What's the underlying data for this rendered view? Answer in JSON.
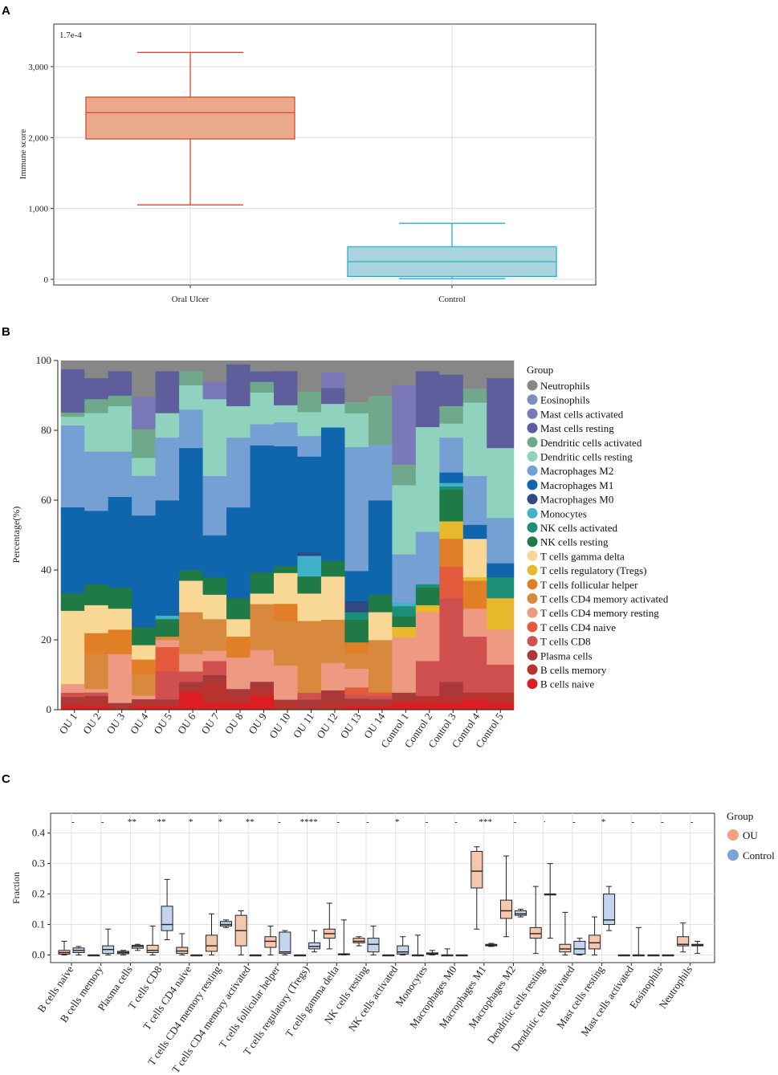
{
  "panels": {
    "a": "A",
    "b": "B",
    "c": "C"
  },
  "chart_data": [
    {
      "type": "box",
      "panel": "A",
      "annotation": "1.7e-4",
      "ylabel": "Immune score",
      "yticks": [
        0,
        1000,
        2000,
        3000
      ],
      "ytick_labels": [
        "0",
        "1,000",
        "2,000",
        "3,000"
      ],
      "ylim": [
        -80,
        3600
      ],
      "categories": [
        "Oral Ulcer",
        "Control"
      ],
      "colors": {
        "fill": [
          "#eba98c",
          "#a9d4de"
        ],
        "stroke": [
          "#d94a2f",
          "#2ab0cc"
        ]
      },
      "boxes": [
        {
          "min": 1050,
          "q1": 1980,
          "median": 2350,
          "q3": 2570,
          "max": 3200
        },
        {
          "min": 10,
          "q1": 40,
          "median": 250,
          "q3": 460,
          "max": 790
        }
      ]
    },
    {
      "type": "stacked-bar",
      "panel": "B",
      "ylabel": "Percentage(%)",
      "ylim": [
        0,
        100
      ],
      "yticks": [
        "0",
        "20",
        "40",
        "60",
        "80",
        "100"
      ],
      "legend_title": "Group",
      "samples": [
        "OU 1",
        "OU 2",
        "OU 3",
        "OU 4",
        "OU 5",
        "OU 6",
        "OU 7",
        "OU 8",
        "OU 9",
        "OU 10",
        "OU 11",
        "OU 12",
        "OU 13",
        "OU 14",
        "Control 1",
        "Control 2",
        "Control 3",
        "Control 4",
        "Control 5"
      ],
      "cell_types": [
        "B cells naive",
        "B cells memory",
        "Plasma cells",
        "T cells CD8",
        "T cells CD4 naive",
        "T cells CD4 memory resting",
        "T cells CD4 memory activated",
        "T cells follicular helper",
        "T cells regulatory (Tregs)",
        "T cells gamma delta",
        "NK cells resting",
        "NK cells activated",
        "Monocytes",
        "Macrophages M0",
        "Macrophages M1",
        "Macrophages M2",
        "Dendritic cells resting",
        "Dendritic cells activated",
        "Mast cells resting",
        "Mast cells activated",
        "Eosinophils",
        "Neutrophils"
      ],
      "colors": [
        "#dd1c24",
        "#b8332d",
        "#a9393b",
        "#d05050",
        "#e45a3f",
        "#ee9a82",
        "#d9893e",
        "#e07f25",
        "#e8b92c",
        "#f9d794",
        "#1f7a45",
        "#1c8f76",
        "#3fb1c8",
        "#2e4a86",
        "#1066ad",
        "#74a0d3",
        "#8fd3bf",
        "#6fa88a",
        "#5e5e9c",
        "#7a78b8",
        "#7c8fbd",
        "#878787"
      ],
      "legend_order": [
        "Neutrophils",
        "Eosinophils",
        "Mast cells activated",
        "Mast cells resting",
        "Dendritic cells activated",
        "Dendritic cells resting",
        "Macrophages M2",
        "Macrophages M1",
        "Macrophages M0",
        "Monocytes",
        "NK cells activated",
        "NK cells resting",
        "T cells gamma delta",
        "T cells regulatory (Tregs)",
        "T cells follicular helper",
        "T cells CD4 memory activated",
        "T cells CD4 memory resting",
        "T cells CD4 naive",
        "T cells CD8",
        "Plasma cells",
        "B cells memory",
        "B cells naive"
      ],
      "values": [
        [
          1,
          1,
          1,
          1,
          0,
          2,
          0,
          0,
          0,
          17,
          4,
          0,
          0,
          0,
          20,
          19,
          2,
          1,
          10,
          0,
          0,
          2
        ],
        [
          1,
          2,
          1,
          1,
          0,
          1,
          10,
          6,
          0,
          8,
          6,
          0,
          0,
          0,
          21,
          17,
          11,
          4,
          6,
          0,
          0,
          5
        ],
        [
          0,
          1,
          1,
          0,
          0,
          14,
          0,
          7,
          0,
          6,
          6,
          0,
          0,
          0,
          26,
          13,
          13,
          3,
          7,
          0,
          0,
          3
        ],
        [
          1,
          1,
          1,
          0,
          0,
          1,
          6,
          4,
          0,
          4,
          5,
          0,
          0,
          0,
          31,
          11,
          5,
          8,
          0,
          9,
          0,
          10
        ],
        [
          1,
          1,
          1,
          8,
          7,
          2,
          1,
          0,
          0,
          0,
          5,
          0,
          1,
          0,
          33,
          18,
          7,
          0,
          12,
          0,
          0,
          3
        ],
        [
          5,
          1,
          2,
          3,
          0,
          5,
          12,
          0,
          0,
          9,
          3,
          0,
          0,
          0,
          35,
          11,
          7,
          4,
          0,
          0,
          0,
          3
        ],
        [
          2,
          6,
          2,
          4,
          0,
          3,
          9,
          0,
          0,
          7,
          5,
          0,
          0,
          0,
          12,
          17,
          22,
          0,
          0,
          5,
          0,
          6
        ],
        [
          2,
          2,
          2,
          0,
          0,
          9,
          0,
          6,
          0,
          5,
          6,
          0,
          0,
          0,
          26,
          20,
          9,
          0,
          12,
          0,
          0,
          1
        ],
        [
          4,
          2,
          2,
          0,
          0,
          9,
          13,
          0,
          0,
          3,
          6,
          0,
          0,
          0,
          36,
          6,
          9,
          3,
          3,
          0,
          0,
          3
        ],
        [
          0,
          2,
          1,
          0,
          0,
          10,
          13,
          5,
          0,
          9,
          2,
          0,
          0,
          0,
          35,
          7,
          5,
          0,
          10,
          0,
          0,
          3
        ],
        [
          0,
          1,
          2,
          2,
          0,
          0,
          21,
          0,
          0,
          8,
          5,
          0,
          6,
          1,
          28,
          6,
          7,
          6,
          0,
          0,
          0,
          9
        ],
        [
          0,
          2,
          3,
          0,
          0,
          7,
          11,
          0,
          0,
          11,
          4,
          0,
          0,
          0,
          34,
          0,
          6,
          0,
          4,
          4,
          0,
          3
        ],
        [
          1,
          1,
          1,
          1,
          2,
          5,
          4,
          3,
          0,
          0,
          6,
          2,
          0,
          3,
          8,
          33,
          9,
          3,
          0,
          0,
          0,
          11
        ],
        [
          1,
          1,
          1,
          1,
          1,
          0,
          15,
          0,
          0,
          8,
          5,
          0,
          0,
          0,
          27,
          16,
          0,
          14,
          0,
          0,
          0,
          10
        ],
        [
          2,
          1,
          2,
          0,
          0,
          16,
          0,
          0,
          3,
          0,
          3,
          3,
          1,
          0,
          0,
          14,
          20,
          6,
          0,
          23,
          0,
          7
        ],
        [
          2,
          2,
          0,
          10,
          0,
          14,
          0,
          0,
          2,
          0,
          5,
          1,
          0,
          0,
          0,
          15,
          30,
          0,
          16,
          0,
          0,
          3
        ],
        [
          2,
          2,
          4,
          24,
          9,
          0,
          0,
          8,
          5,
          0,
          9,
          1,
          1,
          0,
          3,
          10,
          4,
          5,
          9,
          0,
          0,
          4
        ],
        [
          3,
          2,
          0,
          16,
          0,
          8,
          0,
          8,
          1,
          11,
          0,
          0,
          0,
          0,
          4,
          14,
          21,
          4,
          0,
          0,
          0,
          8
        ],
        [
          2,
          3,
          0,
          8,
          0,
          10,
          0,
          0,
          9,
          0,
          0,
          6,
          0,
          0,
          4,
          13,
          20,
          0,
          20,
          0,
          0,
          5
        ]
      ]
    },
    {
      "type": "grouped-box",
      "panel": "C",
      "ylabel": "Fraction",
      "ylim": [
        -0.025,
        0.465
      ],
      "yticks": [
        "0.0",
        "0.1",
        "0.2",
        "0.3",
        "0.4"
      ],
      "legend_title": "Group",
      "groups": [
        "OU",
        "Control"
      ],
      "group_colors": [
        "#f7c7ad",
        "#c3d5ee"
      ],
      "legend_colors": [
        "#f2a182",
        "#7ea3d9"
      ],
      "categories": [
        "B cells naive",
        "B cells memory",
        "Plasma cells",
        "T cells CD8",
        "T cells CD4 naive",
        "T cells CD4 memory resting",
        "T cells CD4 memory activated",
        "T cells follicular helper",
        "T cells regulatory (Tregs)",
        "T cells gamma delta",
        "NK cells resting",
        "NK cells activated",
        "Monocytes",
        "Macrophages M0",
        "Macrophages M1",
        "Macrophages M2",
        "Dendritic cells resting",
        "Dendritic cells activated",
        "Mast cells resting",
        "Mast cells activated",
        "Eosinophils",
        "Neutrophils"
      ],
      "significance": [
        "-",
        "-",
        "**",
        "**",
        "*",
        "*",
        "**",
        "-",
        "****",
        "-",
        "-",
        "*",
        "-",
        "-",
        "***",
        "-",
        "·",
        "-",
        "*",
        "-",
        "-",
        "-"
      ],
      "ou": [
        [
          0,
          0.003,
          0.008,
          0.015,
          0.045
        ],
        [
          0,
          0,
          0,
          0,
          0
        ],
        [
          0,
          0.004,
          0.008,
          0.012,
          0.015
        ],
        [
          0,
          0.008,
          0.015,
          0.032,
          0.095
        ],
        [
          0,
          0.005,
          0.013,
          0.025,
          0.07
        ],
        [
          0,
          0.012,
          0.03,
          0.065,
          0.135
        ],
        [
          0,
          0.03,
          0.08,
          0.13,
          0.145
        ],
        [
          0,
          0.025,
          0.045,
          0.06,
          0.095
        ],
        [
          0,
          0,
          0,
          0,
          0
        ],
        [
          0.02,
          0.055,
          0.07,
          0.085,
          0.17
        ],
        [
          0.03,
          0.04,
          0.045,
          0.055,
          0.06
        ],
        [
          0,
          0,
          0,
          0,
          0
        ],
        [
          0,
          0,
          0,
          0,
          0.065
        ],
        [
          0,
          0,
          0,
          0,
          0.02
        ],
        [
          0.085,
          0.22,
          0.275,
          0.34,
          0.355
        ],
        [
          0.06,
          0.12,
          0.145,
          0.18,
          0.325
        ],
        [
          0.005,
          0.055,
          0.07,
          0.09,
          0.225
        ],
        [
          0,
          0.01,
          0.02,
          0.035,
          0.14
        ],
        [
          0,
          0.02,
          0.04,
          0.065,
          0.125
        ],
        [
          0,
          0,
          0,
          0,
          0
        ],
        [
          0,
          0,
          0,
          0,
          0
        ],
        [
          0.01,
          0.03,
          0.035,
          0.06,
          0.105
        ]
      ],
      "control": [
        [
          0,
          0.008,
          0.015,
          0.023,
          0.028
        ],
        [
          0,
          0.005,
          0.018,
          0.03,
          0.085
        ],
        [
          0.015,
          0.022,
          0.028,
          0.032,
          0.035
        ],
        [
          0.05,
          0.08,
          0.1,
          0.16,
          0.248
        ],
        [
          0,
          0,
          0,
          0,
          0
        ],
        [
          0.09,
          0.095,
          0.1,
          0.11,
          0.115
        ],
        [
          0,
          0,
          0,
          0,
          0
        ],
        [
          0,
          0.005,
          0.01,
          0.075,
          0.08
        ],
        [
          0.01,
          0.02,
          0.028,
          0.04,
          0.08
        ],
        [
          0,
          0.002,
          0.003,
          0.004,
          0.115
        ],
        [
          0,
          0.01,
          0.035,
          0.055,
          0.095
        ],
        [
          0,
          0.003,
          0.01,
          0.03,
          0.06
        ],
        [
          0,
          0.002,
          0.004,
          0.007,
          0.015
        ],
        [
          0,
          0,
          0,
          0,
          0
        ],
        [
          0.028,
          0.03,
          0.032,
          0.035,
          0.038
        ],
        [
          0.125,
          0.13,
          0.135,
          0.145,
          0.15
        ],
        [
          0.055,
          0.2,
          0.2,
          0.2,
          0.3
        ],
        [
          0,
          0.003,
          0.02,
          0.045,
          0.055
        ],
        [
          0.08,
          0.1,
          0.115,
          0.2,
          0.225
        ],
        [
          0,
          0,
          0,
          0,
          0.09
        ],
        [
          0,
          0,
          0,
          0,
          0
        ],
        [
          0.005,
          0.03,
          0.032,
          0.035,
          0.045
        ]
      ]
    }
  ]
}
